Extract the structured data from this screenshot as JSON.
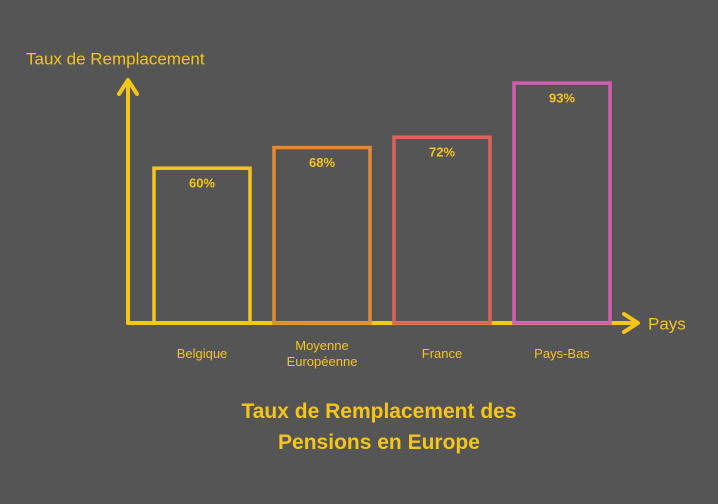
{
  "chart_data": {
    "type": "bar",
    "title": "Taux de Remplacement des Pensions en Europe",
    "y_label": "Taux de Remplacement",
    "x_label": "Pays",
    "categories": [
      "Belgique",
      "Moyenne Européenne",
      "France",
      "Pays-Bas"
    ],
    "values": [
      60,
      68,
      72,
      93
    ],
    "value_labels": [
      "60%",
      "68%",
      "72%",
      "93%"
    ],
    "colors": [
      "#f5c518",
      "#e08a3a",
      "#e0605a",
      "#d45bb0"
    ],
    "ylim": [
      0,
      100
    ]
  }
}
